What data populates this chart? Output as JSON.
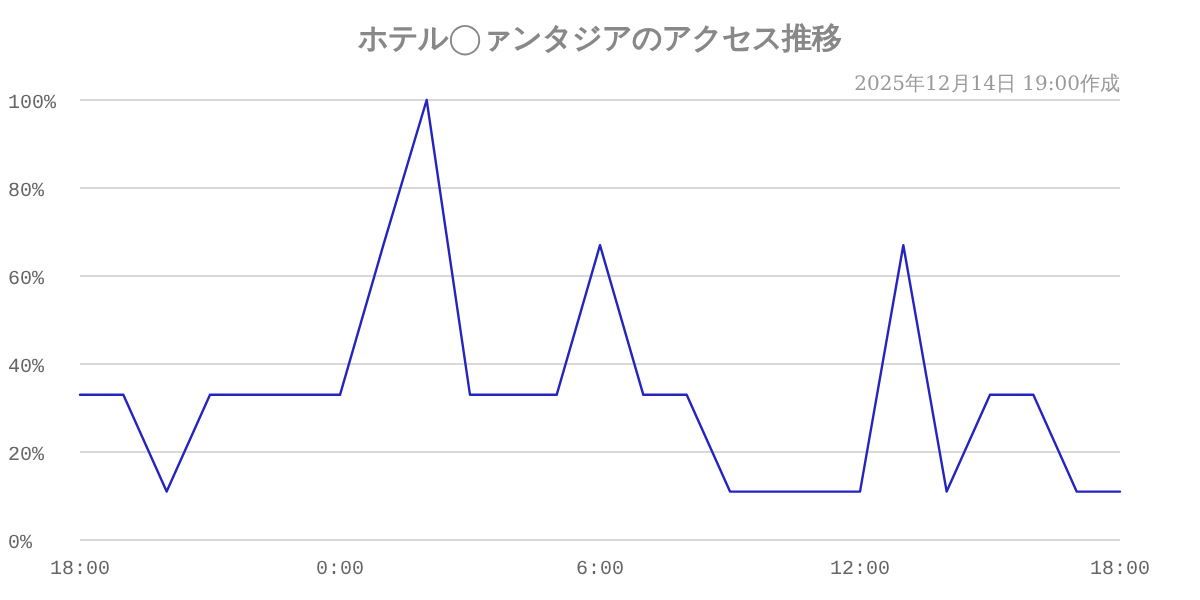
{
  "chart_data": {
    "type": "line",
    "title": "ホテル◯ァンタジアのアクセス推移",
    "subtitle": "2025年12月14日 19:00作成",
    "x": [
      "2025-12-13T18:00",
      "2025-12-13T19:00",
      "2025-12-13T20:00",
      "2025-12-13T21:00",
      "2025-12-13T22:00",
      "2025-12-13T23:00",
      "2025-12-14T00:00",
      "2025-12-14T01:00",
      "2025-12-14T02:00",
      "2025-12-14T03:00",
      "2025-12-14T04:00",
      "2025-12-14T05:00",
      "2025-12-14T06:00",
      "2025-12-14T07:00",
      "2025-12-14T08:00",
      "2025-12-14T09:00",
      "2025-12-14T10:00",
      "2025-12-14T11:00",
      "2025-12-14T12:00",
      "2025-12-14T13:00",
      "2025-12-14T14:00",
      "2025-12-14T15:00",
      "2025-12-14T16:00",
      "2025-12-14T17:00",
      "2025-12-14T18:00"
    ],
    "series": [
      {
        "color": "#2424c0",
        "values": [
          33,
          33,
          11,
          33,
          33,
          33,
          33,
          67,
          100,
          33,
          33,
          33,
          67,
          33,
          33,
          11,
          11,
          11,
          11,
          67,
          11,
          33,
          33,
          11,
          11
        ]
      }
    ],
    "xlim": [
      "2025-12-13T18:00",
      "2025-12-14T18:00"
    ],
    "xticks": [
      {
        "value": "2025-12-13T18:00",
        "label": "18:00"
      },
      {
        "value": "2025-12-14T00:00",
        "label": "0:00"
      },
      {
        "value": "2025-12-14T06:00",
        "label": "6:00"
      },
      {
        "value": "2025-12-14T12:00",
        "label": "12:00"
      },
      {
        "value": "2025-12-14T18:00",
        "label": "18:00"
      }
    ],
    "ylim": [
      0,
      100
    ],
    "yticks": [
      {
        "value": 0,
        "label": "0%"
      },
      {
        "value": 20,
        "label": "20%"
      },
      {
        "value": 40,
        "label": "40%"
      },
      {
        "value": 60,
        "label": "60%"
      },
      {
        "value": 80,
        "label": "80%"
      },
      {
        "value": 100,
        "label": "100%"
      }
    ],
    "grid": "y"
  }
}
